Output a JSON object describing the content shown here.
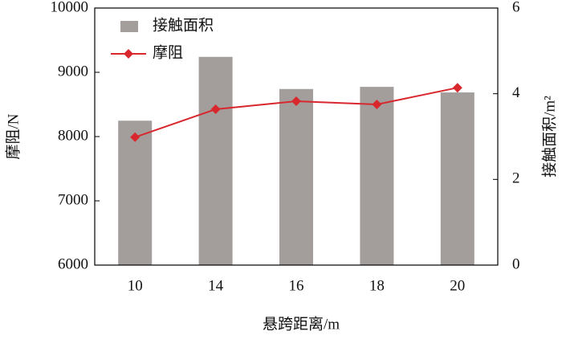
{
  "chart_data": {
    "type": "bar",
    "x_label": "悬跨距离/m",
    "y_label": "摩阻/N",
    "y2_label": "接触面积/m²",
    "categories": [
      "10",
      "14",
      "16",
      "18",
      "20"
    ],
    "series": [
      {
        "name": "接触面积",
        "type": "bar",
        "axis": "y2",
        "color": "#a39e9b",
        "values": [
          3.37,
          4.86,
          4.11,
          4.16,
          4.03
        ]
      },
      {
        "name": "摩阻",
        "type": "line",
        "axis": "y",
        "color": "#d9272e",
        "values": [
          7990,
          8425,
          8550,
          8500,
          8760
        ]
      }
    ],
    "ylim": [
      6000,
      10000
    ],
    "yticks": [
      6000,
      7000,
      8000,
      9000,
      10000
    ],
    "y2lim": [
      0,
      6
    ],
    "y2ticks": [
      0,
      2,
      4,
      6
    ],
    "legend": "upper-left"
  }
}
